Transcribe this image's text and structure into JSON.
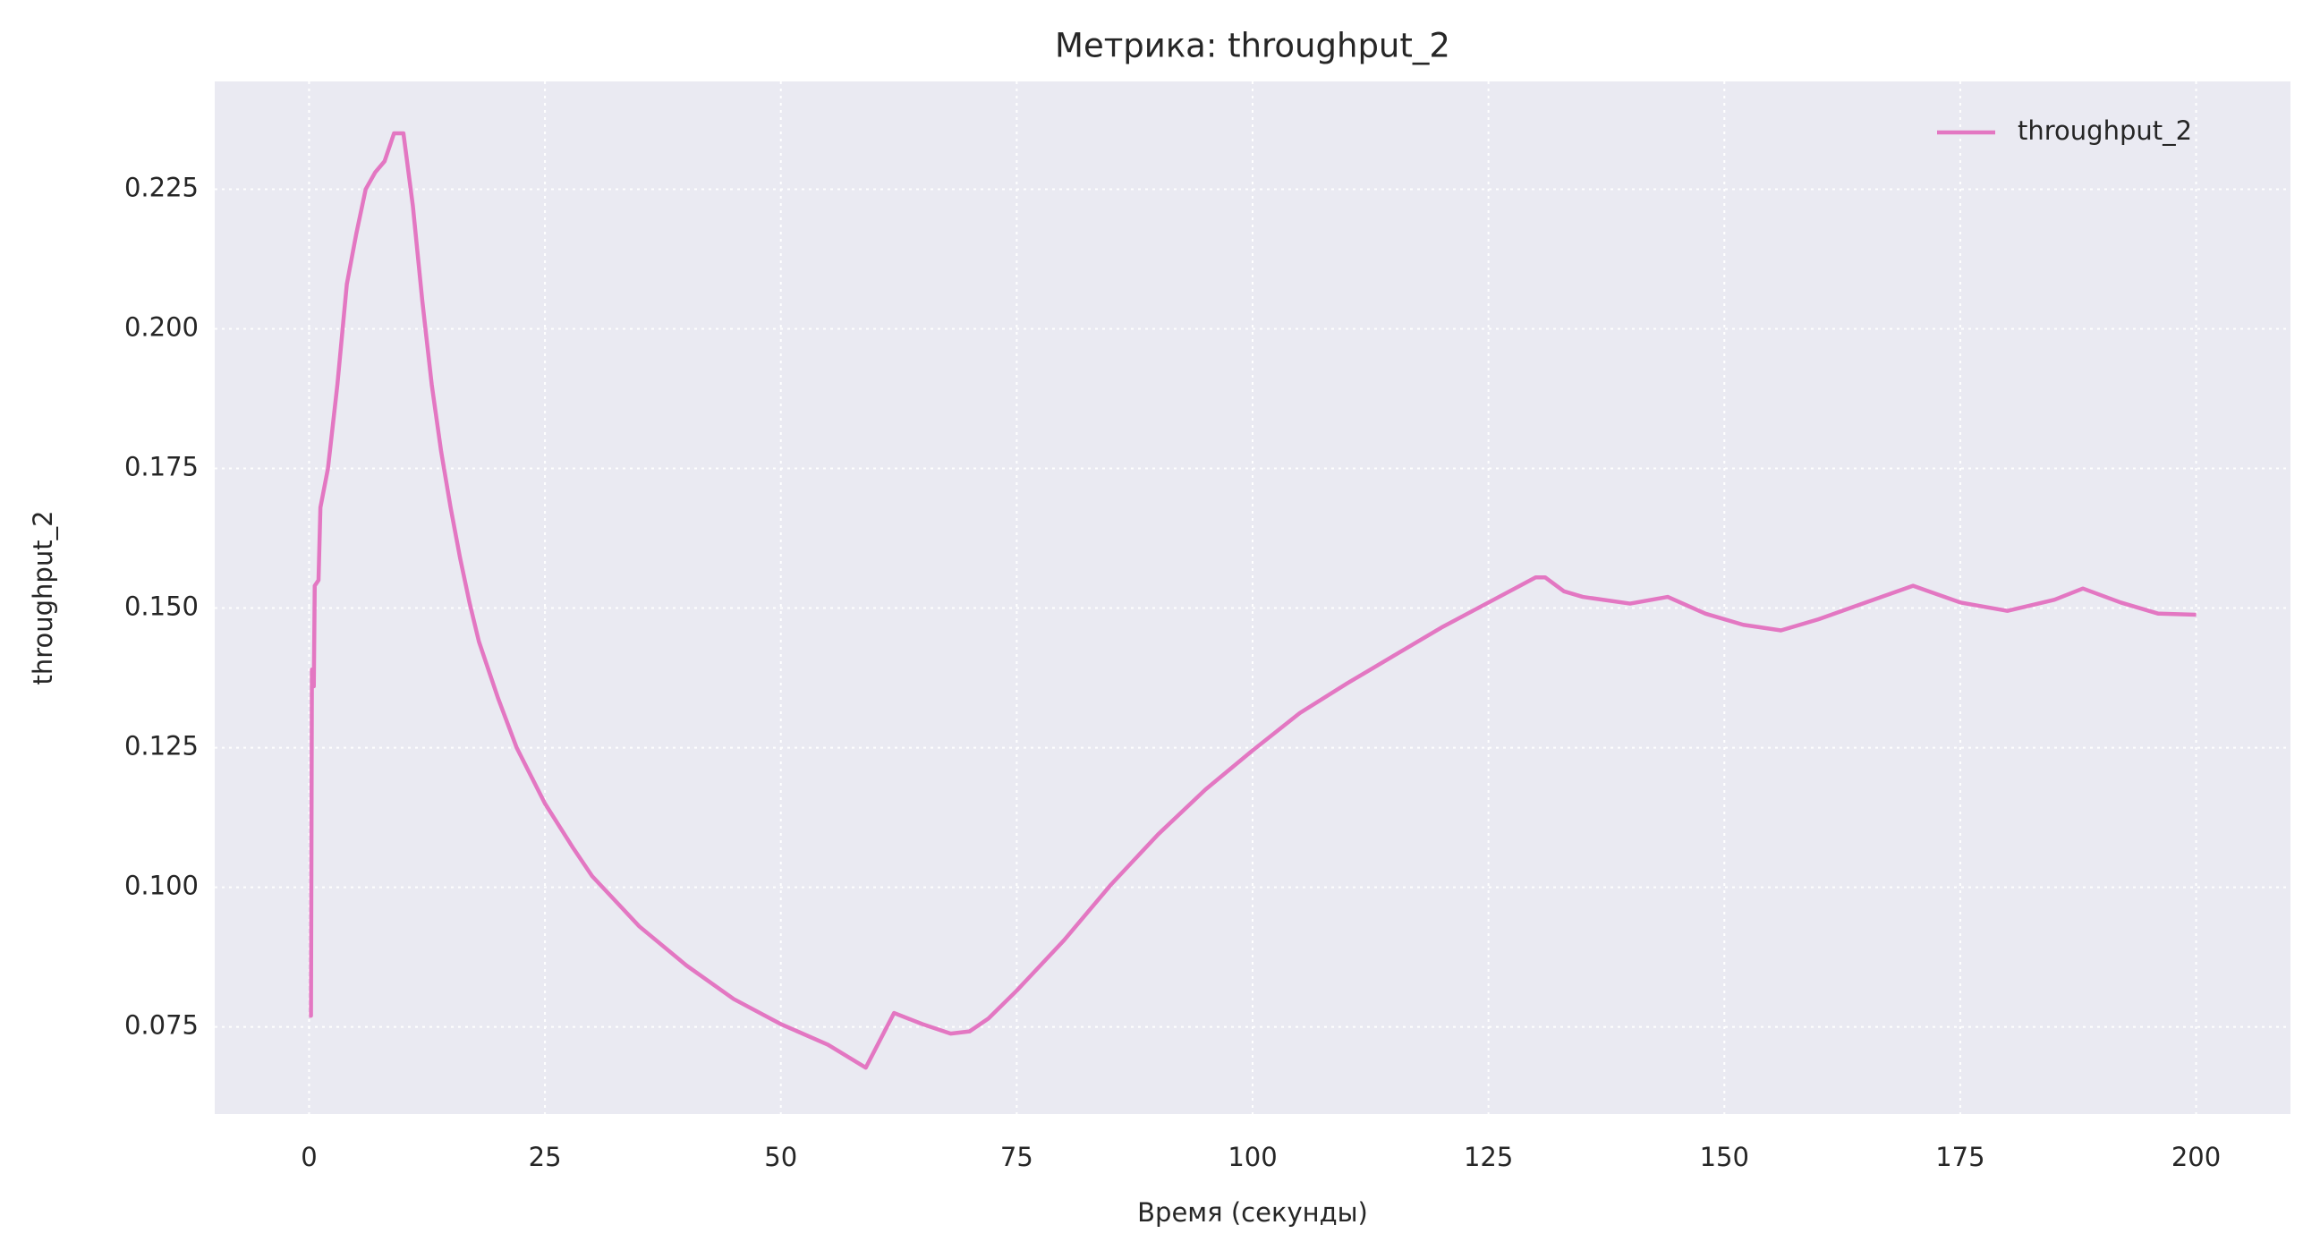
{
  "chart_data": {
    "type": "line",
    "title": "Метрика: throughput_2",
    "xlabel": "Время (секунды)",
    "ylabel": "throughput_2",
    "x": [
      0,
      0.2,
      0.3,
      0.5,
      0.6,
      1,
      1.2,
      2,
      3,
      4,
      5,
      6,
      7,
      8,
      9,
      10,
      11,
      12,
      13,
      14,
      15,
      16,
      17,
      18,
      20,
      22,
      25,
      28,
      30,
      35,
      40,
      45,
      50,
      55,
      59,
      62,
      65,
      68,
      70,
      72,
      75,
      80,
      85,
      90,
      95,
      100,
      105,
      110,
      115,
      120,
      125,
      130,
      131,
      133,
      135,
      140,
      144,
      148,
      152,
      156,
      160,
      165,
      170,
      175,
      180,
      185,
      188,
      192,
      196,
      200
    ],
    "series": [
      {
        "name": "throughput_2",
        "color": "#e377c2",
        "values": [
          0.077,
          0.077,
          0.139,
          0.136,
          0.154,
          0.155,
          0.168,
          0.175,
          0.19,
          0.208,
          0.217,
          0.225,
          0.228,
          0.23,
          0.235,
          0.235,
          0.222,
          0.205,
          0.19,
          0.178,
          0.168,
          0.159,
          0.151,
          0.144,
          0.134,
          0.125,
          0.115,
          0.107,
          0.102,
          0.093,
          0.086,
          0.08,
          0.0755,
          0.0718,
          0.0677,
          0.0775,
          0.0755,
          0.0738,
          0.0742,
          0.0765,
          0.0815,
          0.0905,
          0.1005,
          0.1095,
          0.1175,
          0.1245,
          0.1312,
          0.1365,
          0.1415,
          0.1465,
          0.151,
          0.1555,
          0.1555,
          0.153,
          0.152,
          0.1508,
          0.152,
          0.149,
          0.147,
          0.146,
          0.148,
          0.151,
          0.154,
          0.151,
          0.1495,
          0.1515,
          0.1535,
          0.151,
          0.149,
          0.1488
        ]
      }
    ],
    "xlim": [
      -10,
      210
    ],
    "xticks": [
      0,
      25,
      50,
      75,
      100,
      125,
      150,
      175,
      200
    ],
    "ylim": [
      0.0594,
      0.2443
    ],
    "yticks": [
      0.075,
      {
        "value": 0.1,
        "label": "0.100"
      },
      0.125,
      {
        "value": 0.15,
        "label": "0.150"
      },
      0.175,
      {
        "value": 0.2,
        "label": "0.200"
      },
      0.225
    ],
    "grid": true,
    "legend": "upper right"
  }
}
